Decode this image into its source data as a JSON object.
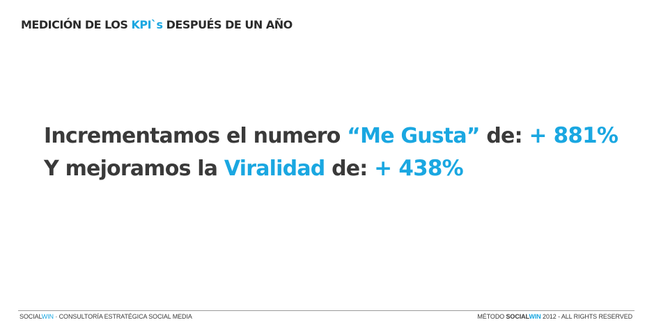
{
  "header": {
    "title_part1": "MEDICIÓN DE LOS ",
    "title_highlight": "KPI`s",
    "title_part2": " DESPUÉS DE UN AÑO"
  },
  "content": {
    "line1": {
      "text": "Incrementamos el numero ",
      "highlight": "“Me Gusta”",
      "suffix": " de: ",
      "value": "+ 881%"
    },
    "line2": {
      "text": "Y mejoramos la ",
      "highlight": "Viralidad",
      "suffix": " de: ",
      "value": "+ 438%"
    }
  },
  "footer": {
    "left_brand_a": "SOCIAL",
    "left_brand_b": "WIN",
    "left_text": " · CONSULTORÍA ESTRATÉGICA SOCIAL MEDIA",
    "right_prefix": "MÉTODO ",
    "right_brand_a": "SOCIAL",
    "right_brand_b": "WIN",
    "right_suffix": " 2012 - ALL RIGHTS RESERVED"
  },
  "colors": {
    "accent": "#1aa7e1",
    "text": "#3a3a3a",
    "rule": "#9a9a9a"
  }
}
